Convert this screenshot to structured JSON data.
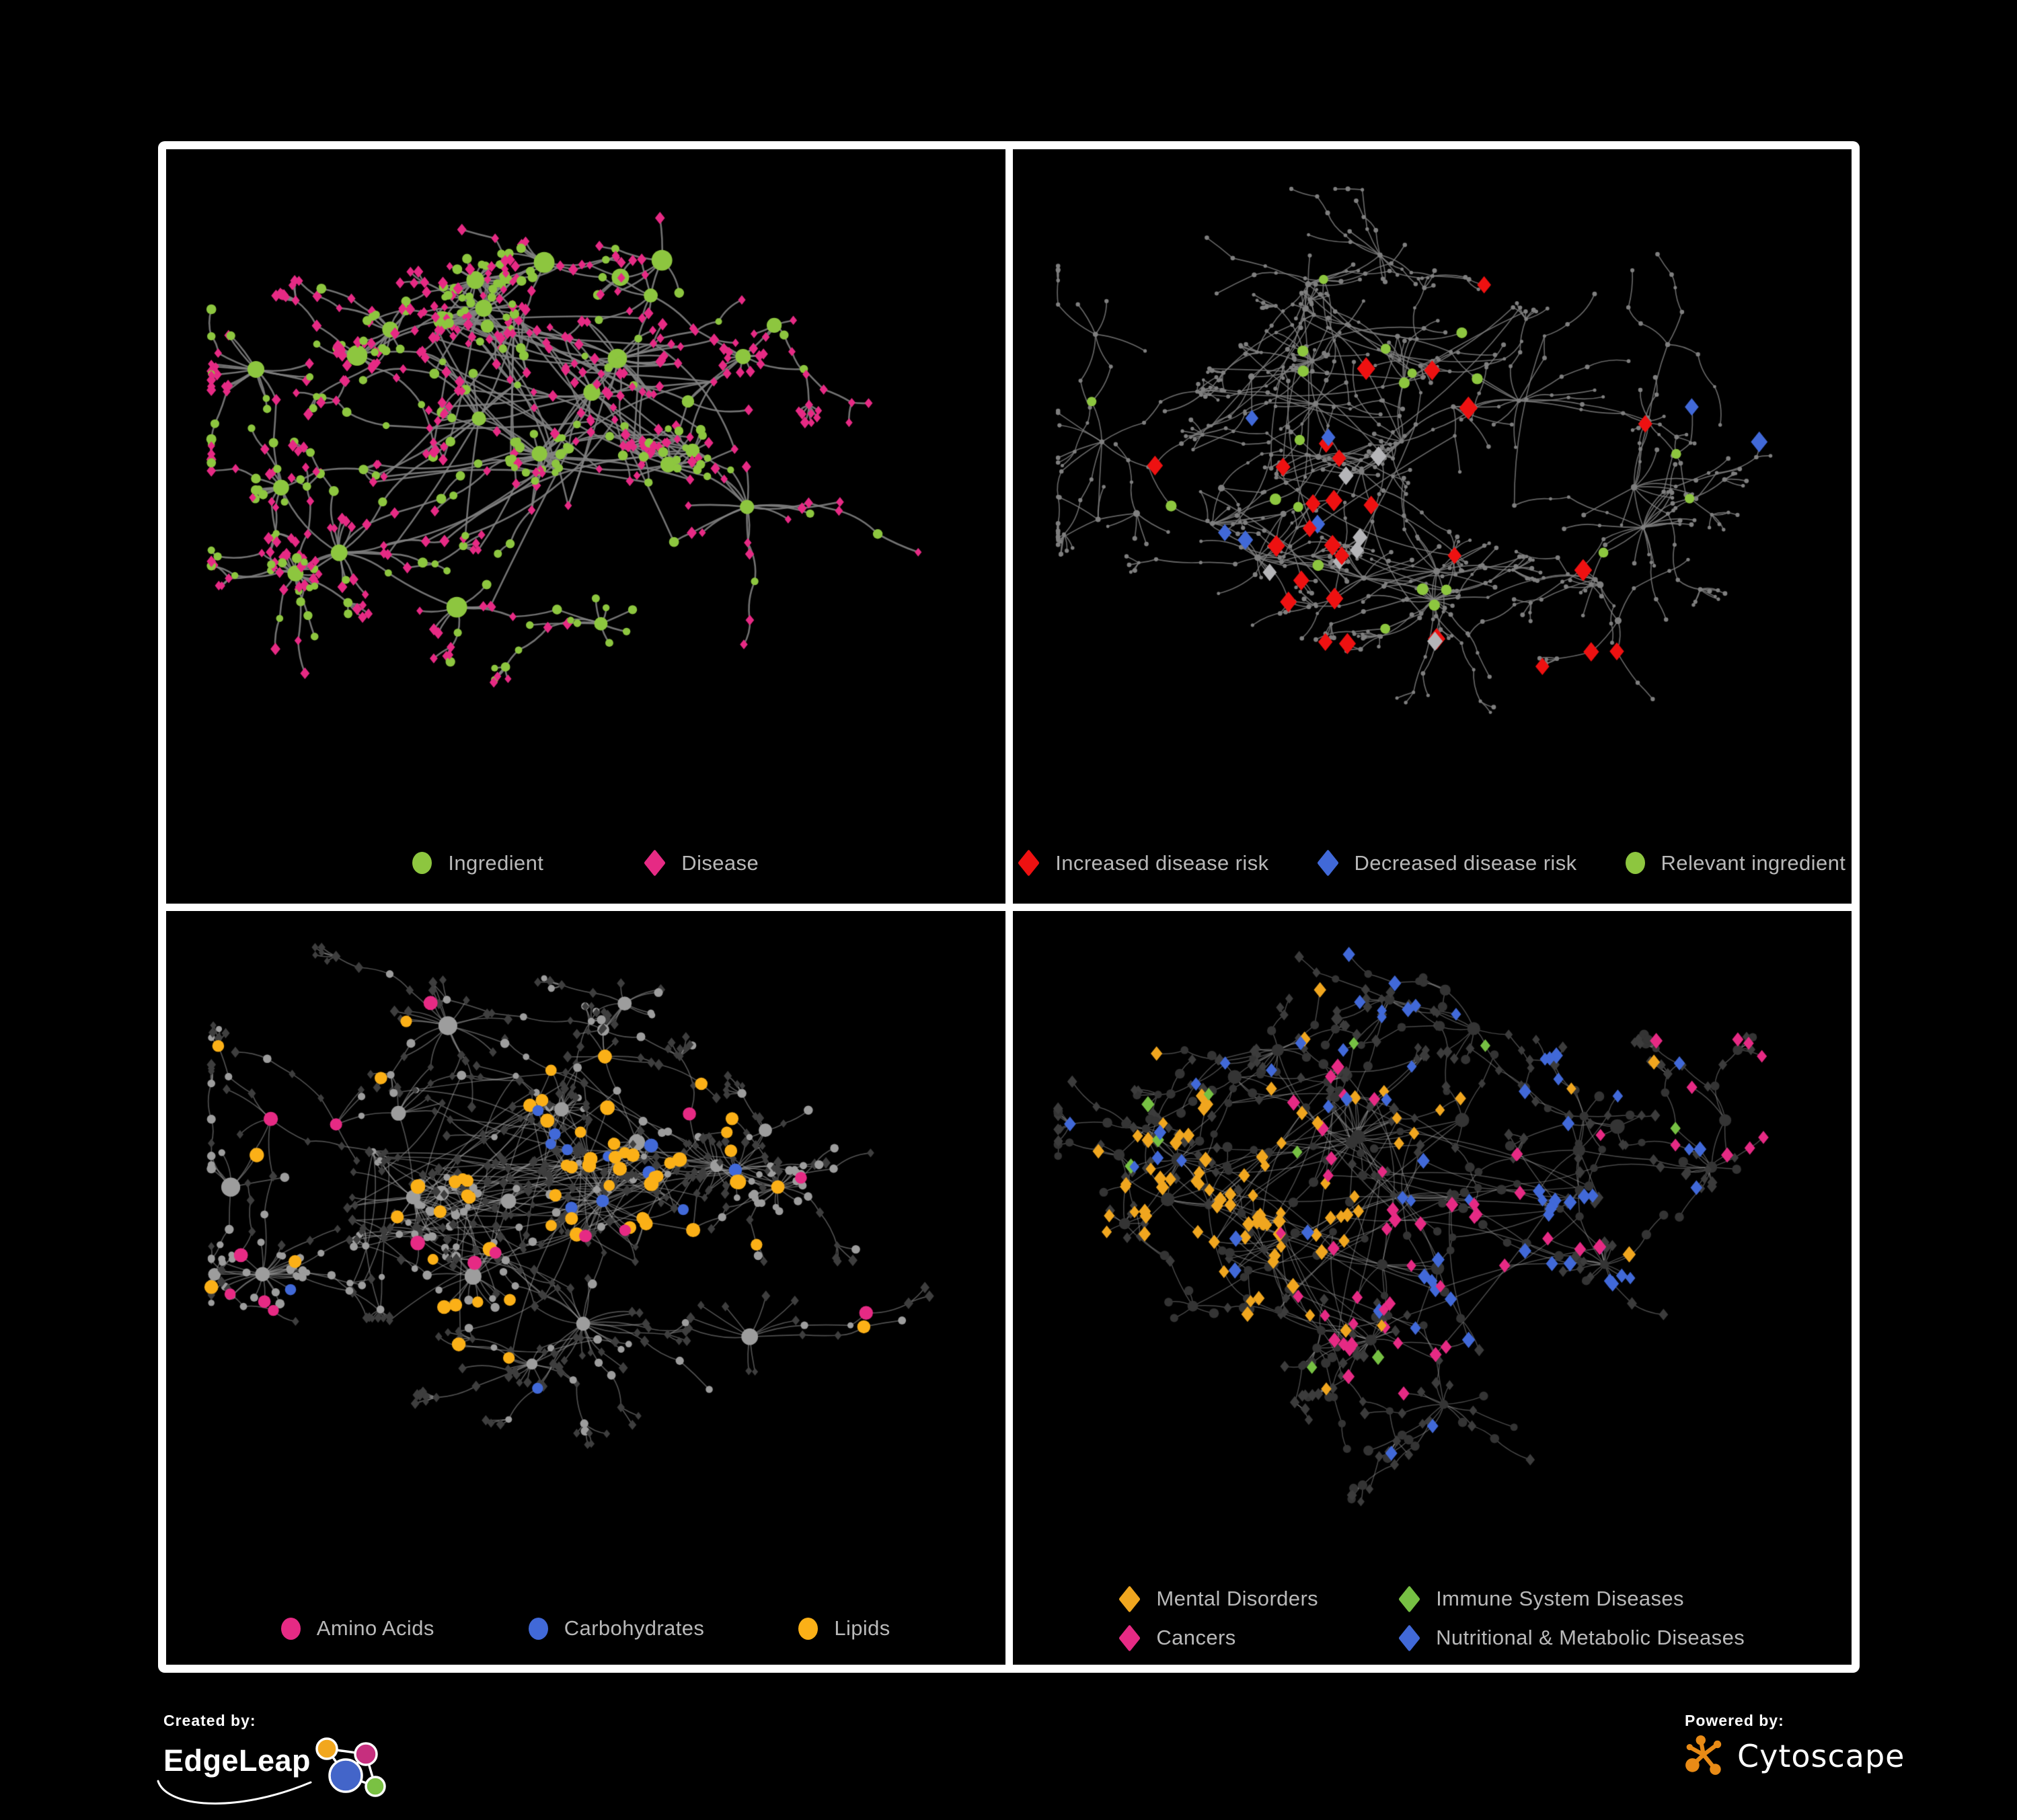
{
  "page": {
    "background": "#000000",
    "frame_color": "#ffffff",
    "legend_text_color": "#b9b9b9"
  },
  "panels": [
    {
      "name": "ingredient-disease-network",
      "legend": {
        "items": [
          {
            "label": "Ingredient",
            "shape": "circle",
            "color": "#8dc63f"
          },
          {
            "label": "Disease",
            "shape": "diamond",
            "color": "#e62a84"
          }
        ]
      },
      "style": {
        "edgeColor": "rgba(130,130,130,0.88)",
        "edgeWidth": 2.6,
        "ing": {
          "color": "#8dc63f",
          "shape": "circle"
        },
        "dis": {
          "color": "#e62a84",
          "shape": "diamond"
        }
      },
      "gen": {
        "seed": 20,
        "hubs": 26,
        "core": [
          0.44,
          0.44
        ],
        "spread": 0.3,
        "hubSize": [
          9,
          16
        ],
        "leafSize": [
          5,
          7.5
        ],
        "leavesMin": 4,
        "leavesMax": 24,
        "tendrilP": 0.25,
        "hubDisBias": 0.6,
        "chainDisP": 0.55,
        "extraEdges": 520,
        "margin": [
          50,
          45,
          150
        ]
      },
      "highlights": []
    },
    {
      "name": "disease-risk-network",
      "legend": {
        "items": [
          {
            "label": "Increased disease risk",
            "shape": "diamond",
            "color": "#ee1111"
          },
          {
            "label": "Decreased disease risk",
            "shape": "diamond",
            "color": "#4169d8"
          },
          {
            "label": "Relevant ingredient",
            "shape": "circle",
            "color": "#8dc63f"
          }
        ]
      },
      "style": {
        "edgeColor": "rgba(128,128,128,0.8)",
        "edgeWidth": 1.7,
        "ing": {
          "color": "#7f7f7f",
          "shape": "circle"
        },
        "dis": {
          "color": "#7f7f7f",
          "shape": "circle"
        }
      },
      "gen": {
        "seed": 7,
        "hubs": 32,
        "core": [
          0.46,
          0.42
        ],
        "spread": 0.33,
        "hubSize": [
          3.2,
          5.5
        ],
        "leafSize": [
          2.4,
          3.6
        ],
        "leavesMin": 3,
        "leavesMax": 18,
        "tendrilP": 0.5,
        "hubDisBias": 0.7,
        "chainDisP": 0.55,
        "extraEdges": 160,
        "margin": [
          50,
          45,
          150
        ]
      },
      "highlights": [
        {
          "shape": "diamond",
          "color": "#ee1111",
          "size": 12,
          "count": 24,
          "focus": [
            0.44,
            0.5
          ],
          "spread": 0.17
        },
        {
          "shape": "diamond",
          "color": "#ee1111",
          "size": 12,
          "count": 3,
          "focus": [
            0.74,
            0.82
          ],
          "spread": 0.05
        },
        {
          "shape": "diamond",
          "color": "#4169d8",
          "size": 11,
          "count": 5,
          "focus": [
            0.29,
            0.47
          ],
          "spread": 0.08
        },
        {
          "shape": "diamond",
          "color": "#4169d8",
          "size": 11,
          "count": 2,
          "focus": [
            0.89,
            0.35
          ],
          "spread": 0.02
        },
        {
          "shape": "diamond",
          "color": "#b5b5b8",
          "size": 11,
          "count": 7,
          "focus": [
            0.42,
            0.54
          ],
          "spread": 0.17
        },
        {
          "shape": "circle",
          "color": "#8dc63f",
          "size": 8,
          "count": 22,
          "focus": [
            0.4,
            0.46
          ],
          "spread": 0.18
        }
      ]
    },
    {
      "name": "nutrient-class-network",
      "legend": {
        "items": [
          {
            "label": "Amino Acids",
            "shape": "circle",
            "color": "#e62a84"
          },
          {
            "label": "Carbohydrates",
            "shape": "circle",
            "color": "#4169d8"
          },
          {
            "label": "Lipids",
            "shape": "circle",
            "color": "#fbb017"
          }
        ]
      },
      "style": {
        "edgeColor": "rgba(160,160,160,0.5)",
        "edgeWidth": 1.7,
        "ing": {
          "color": "#9d9d9d",
          "shape": "circle"
        },
        "dis": {
          "color": "#3e3e3e",
          "shape": "diamond"
        }
      },
      "gen": {
        "seed": 5,
        "hubs": 26,
        "core": [
          0.4,
          0.42
        ],
        "spread": 0.3,
        "hubSize": [
          8,
          15
        ],
        "leafSize": [
          4.5,
          7
        ],
        "leavesMin": 4,
        "leavesMax": 24,
        "tendrilP": 0.3,
        "hubDisBias": 0.62,
        "chainDisP": 0.5,
        "extraEdges": 500,
        "margin": [
          50,
          40,
          150
        ]
      },
      "highlights": [
        {
          "shape": "circle",
          "color": "#fbb017",
          "size": 9.5,
          "count": 46,
          "focus": [
            0.52,
            0.38
          ],
          "spread": 0.12
        },
        {
          "shape": "circle",
          "color": "#fbb017",
          "size": 9.5,
          "count": 18,
          "focus": [
            0.5,
            0.55
          ],
          "spread": 0.5
        },
        {
          "shape": "circle",
          "color": "#4169d8",
          "size": 9,
          "count": 10,
          "focus": [
            0.5,
            0.36
          ],
          "spread": 0.07
        },
        {
          "shape": "circle",
          "color": "#4169d8",
          "size": 9,
          "count": 3,
          "focus": [
            0.75,
            0.6
          ],
          "spread": 0.4
        },
        {
          "shape": "circle",
          "color": "#e62a84",
          "size": 9.5,
          "count": 15,
          "focus": [
            0.42,
            0.62
          ],
          "spread": 0.42
        }
      ]
    },
    {
      "name": "disease-category-network",
      "legend": {
        "items": [
          {
            "label": "Mental Disorders",
            "shape": "diamond",
            "color": "#f0a61f"
          },
          {
            "label": "Immune System Diseases",
            "shape": "diamond",
            "color": "#76c043"
          },
          {
            "label": "Cancers",
            "shape": "diamond",
            "color": "#e62a84"
          },
          {
            "label": "Nutritional & Metabolic Diseases",
            "shape": "diamond",
            "color": "#4169d8"
          }
        ]
      },
      "style": {
        "edgeColor": "rgba(160,160,160,0.45)",
        "edgeWidth": 1.5,
        "ing": {
          "color": "#343434",
          "shape": "circle"
        },
        "dis": {
          "color": "#3c3c3c",
          "shape": "diamond"
        }
      },
      "gen": {
        "seed": 13,
        "hubs": 30,
        "core": [
          0.46,
          0.42
        ],
        "spread": 0.32,
        "hubSize": [
          6,
          11
        ],
        "leafSize": [
          5.5,
          7.5
        ],
        "leavesMin": 4,
        "leavesMax": 22,
        "tendrilP": 0.35,
        "hubDisBias": 0.8,
        "chainDisP": 0.7,
        "extraEdges": 430,
        "margin": [
          50,
          40,
          165
        ]
      },
      "highlights": [
        {
          "shape": "diamond",
          "color": "#f0a61f",
          "size": 8.5,
          "count": 75,
          "focus": [
            0.27,
            0.45
          ],
          "spread": 0.1
        },
        {
          "shape": "diamond",
          "color": "#f0a61f",
          "size": 8.5,
          "count": 12,
          "focus": [
            0.4,
            0.18
          ],
          "spread": 0.3
        },
        {
          "shape": "diamond",
          "color": "#e62a84",
          "size": 8.5,
          "count": 46,
          "focus": [
            0.45,
            0.5
          ],
          "spread": 0.11
        },
        {
          "shape": "diamond",
          "color": "#e62a84",
          "size": 8.5,
          "count": 8,
          "focus": [
            0.92,
            0.27
          ],
          "spread": 0.05
        },
        {
          "shape": "diamond",
          "color": "#4169d8",
          "size": 8.5,
          "count": 28,
          "focus": [
            0.57,
            0.53
          ],
          "spread": 0.08
        },
        {
          "shape": "diamond",
          "color": "#4169d8",
          "size": 8.5,
          "count": 40,
          "focus": [
            0.6,
            0.2
          ],
          "spread": 0.32
        },
        {
          "shape": "diamond",
          "color": "#76c043",
          "size": 8.5,
          "count": 10,
          "focus": [
            0.45,
            0.42
          ],
          "spread": 0.3
        }
      ]
    }
  ],
  "footer": {
    "created_by_label": "Created by:",
    "edgeleap_brand": "EdgeLeap",
    "powered_by_label": "Powered by:",
    "cytoscape_brand": "Cytoscape",
    "edgeleap_colors": {
      "orange": "#f2a71e",
      "magenta": "#c62f7e",
      "blue": "#4365c9",
      "green": "#7ac143"
    },
    "cytoscape_color": "#e98b16"
  }
}
